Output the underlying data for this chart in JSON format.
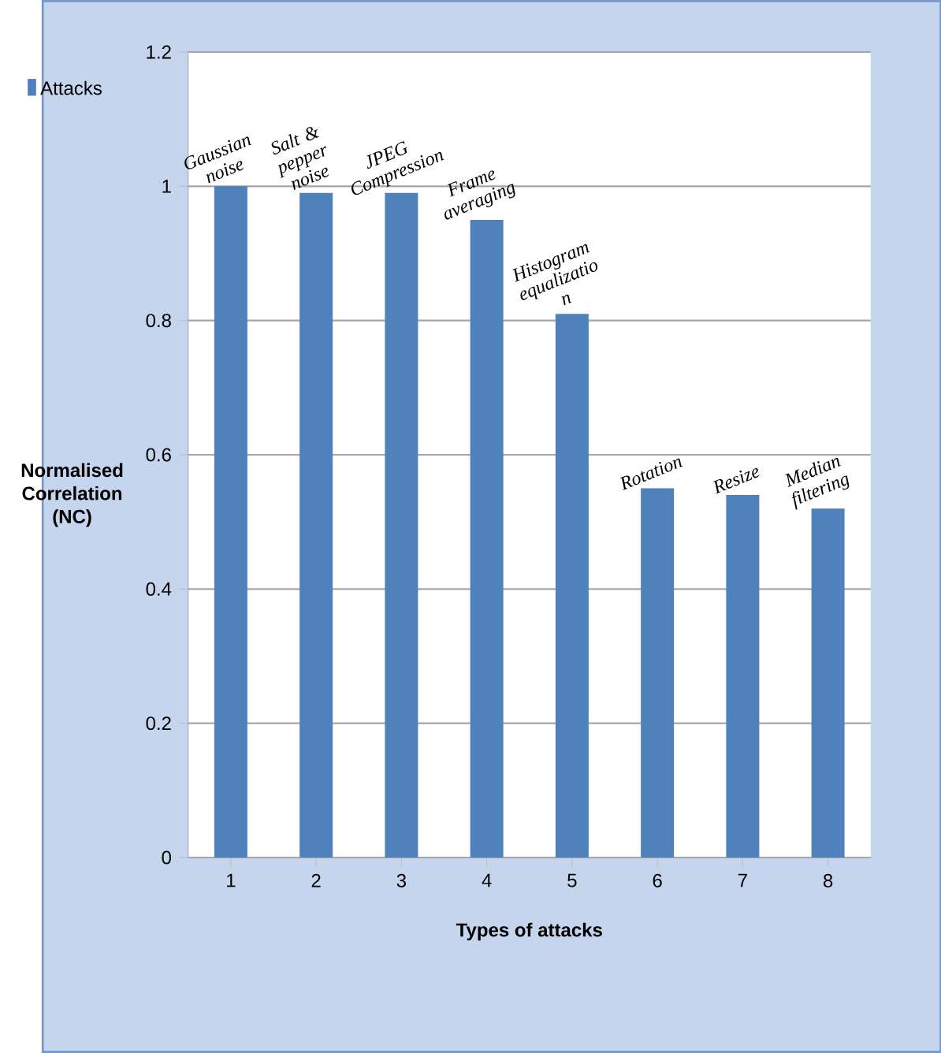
{
  "chart_data": {
    "type": "bar",
    "xlabel": "Types of attacks",
    "ylabel": "Normalised Correlation (NC)",
    "categories": [
      "1",
      "2",
      "3",
      "4",
      "5",
      "6",
      "7",
      "8"
    ],
    "series": [
      {
        "name": "Attacks",
        "color": "#4f81bd",
        "values": [
          1.0,
          0.99,
          0.99,
          0.95,
          0.81,
          0.55,
          0.54,
          0.52
        ]
      }
    ],
    "ylim": [
      0,
      1.2
    ],
    "yticks": [
      0,
      0.2,
      0.4,
      0.6,
      0.8,
      1,
      1.2
    ],
    "grid": "y",
    "legend": "top left",
    "annotations": [
      {
        "text": "Gaussian noise",
        "x": "1",
        "y": 1.0
      },
      {
        "text": "Salt & pepper noise",
        "x": "2",
        "y": 0.99
      },
      {
        "text": "JPEG Compression",
        "x": "3",
        "y": 0.99
      },
      {
        "text": "Frame averaging",
        "x": "4",
        "y": 0.95
      },
      {
        "text": "Histogram equalizatio n",
        "x": "5",
        "y": 0.81
      },
      {
        "text": "Rotation",
        "x": "6",
        "y": 0.55
      },
      {
        "text": "Resize",
        "x": "7",
        "y": 0.54
      },
      {
        "text": "Median filtering",
        "x": "8",
        "y": 0.52
      }
    ]
  }
}
